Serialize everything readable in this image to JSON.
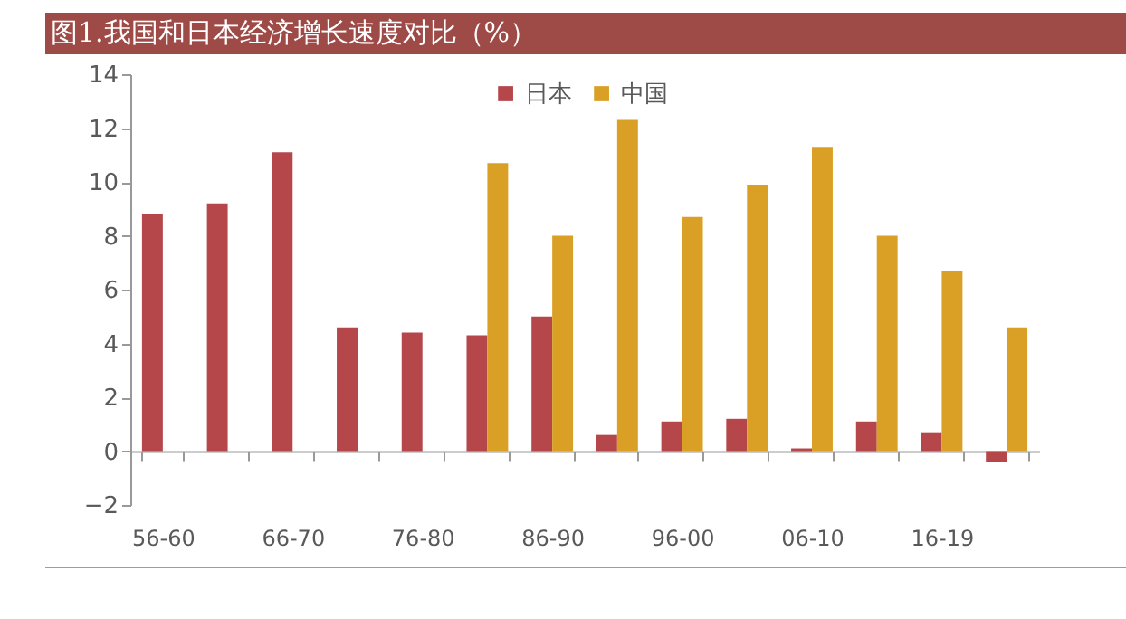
{
  "chart_data": {
    "type": "bar",
    "title": "图1.我国和日本经济增长速度对比（%）",
    "categories": [
      "56-60",
      null,
      "66-70",
      null,
      "76-80",
      null,
      "86-90",
      null,
      "96-00",
      null,
      "06-10",
      null,
      "16-19",
      null
    ],
    "series": [
      {
        "name": "日本",
        "color": "#b5474a",
        "values": [
          8.8,
          9.2,
          11.1,
          4.6,
          4.4,
          4.3,
          5.0,
          0.6,
          1.1,
          1.2,
          0.1,
          1.1,
          0.7,
          -0.4
        ]
      },
      {
        "name": "中国",
        "color": "#daa025",
        "values": [
          null,
          null,
          null,
          null,
          null,
          10.7,
          8.0,
          12.3,
          8.7,
          9.9,
          11.3,
          8.0,
          6.7,
          4.6
        ]
      }
    ],
    "ylim": [
      -2,
      14
    ],
    "yticks": [
      -2,
      0,
      2,
      4,
      6,
      8,
      10,
      12,
      14
    ],
    "legend": "top"
  }
}
